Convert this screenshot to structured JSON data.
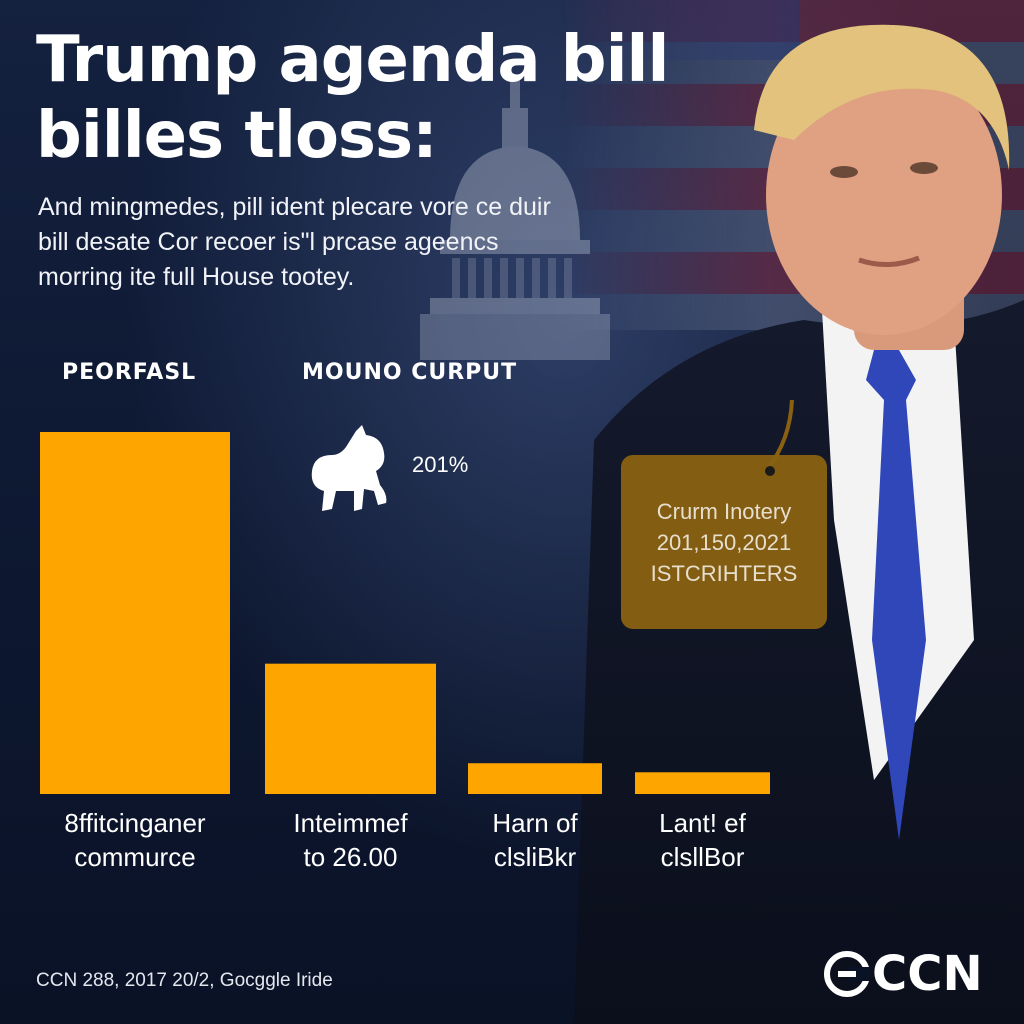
{
  "header": {
    "title_line1": "Trump agenda bill",
    "title_line2": "billes tloss:",
    "subtitle_line1": "And mingmedes, pill ident plecare vore ce duir",
    "subtitle_line2": "bill desate Cor recoer is\"l prcase ageencs",
    "subtitle_line3": "morring ite full House tootey."
  },
  "legend": {
    "left": "PEORFASL",
    "middle": "MOUNO CURPUT",
    "stat": "201%",
    "icon": "dog-icon"
  },
  "chart_data": {
    "type": "bar",
    "title": "",
    "xlabel": "",
    "ylabel": "",
    "ylim": [
      0,
      100
    ],
    "categories": [
      [
        "8ffitcinganer",
        "commurce"
      ],
      [
        "Inteimmef",
        "to 26.00"
      ],
      [
        "Harn of",
        "clsliBkr"
      ],
      [
        "Lant! ef",
        "clsllBor"
      ]
    ],
    "values": [
      100,
      36,
      8.5,
      6
    ]
  },
  "callout": {
    "line1": "Crurm Inotery",
    "line2": "201,150,2021",
    "line3": "ISTCRIHTERS"
  },
  "footer": {
    "source": "CCN 288, 2017 20/2, Gocggle Iride",
    "logo_text": "CCN",
    "logo_icon": "ccn-logo-icon"
  },
  "colors": {
    "bar": "#FFA500",
    "background": "#0d1730",
    "callout": "#8a6111",
    "tie": "#2f47b8"
  }
}
